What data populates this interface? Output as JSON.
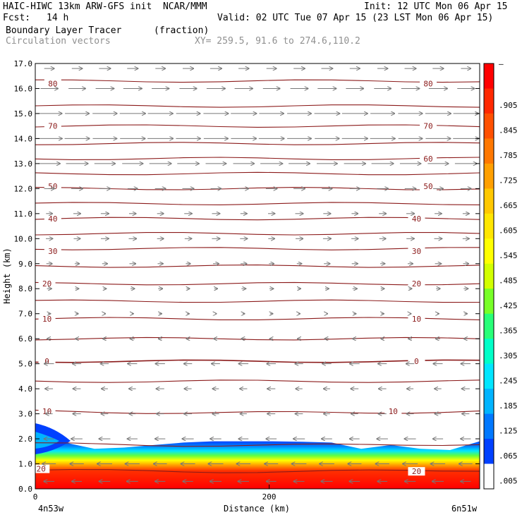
{
  "header": {
    "model": "HAIC-HIWC 13km ARW-GFS init  NCAR/MMM",
    "init": "Init: 12 UTC Mon 06 Apr 15",
    "fcst_label": "Fcst:",
    "fcst_value": "14 h",
    "valid": "Valid: 02 UTC Tue 07 Apr 15 (23 LST Mon 06 Apr 15)",
    "field": "Boundary Layer Tracer",
    "units": "(fraction)",
    "overlay": "Circulation vectors",
    "xy": "XY= 259.5, 91.6 to 274.6,110.2"
  },
  "chart_data": {
    "type": "cross-section",
    "ylabel": "Height (km)",
    "xlabel": "Distance (km)",
    "xlim": [
      0,
      380
    ],
    "ylim": [
      0,
      17
    ],
    "y_ticks": [
      "0.0",
      "1.0",
      "2.0",
      "3.0",
      "4.0",
      "5.0",
      "6.0",
      "7.0",
      "8.0",
      "9.0",
      "10.0",
      "11.0",
      "12.0",
      "13.0",
      "14.0",
      "15.0",
      "16.0",
      "17.0"
    ],
    "x_ticks": [
      {
        "value": 0,
        "label": "0"
      },
      {
        "value": 200,
        "label": "200"
      }
    ],
    "x_endpoints": {
      "left": "4n53w",
      "right": "6n51w"
    },
    "colorbar": {
      "labels": [
        "–",
        ".905",
        ".845",
        ".785",
        ".725",
        ".665",
        ".605",
        ".545",
        ".485",
        ".425",
        ".365",
        ".305",
        ".245",
        ".185",
        ".125",
        ".065",
        ".005"
      ],
      "colors": [
        "#ff0000",
        "#ff2800",
        "#ff5000",
        "#ff7800",
        "#ffa000",
        "#ffc800",
        "#ffe600",
        "#ffff00",
        "#d2ff00",
        "#78ff28",
        "#28ff78",
        "#00ffc8",
        "#00e6ff",
        "#00b4ff",
        "#0078ff",
        "#0040ff",
        "#ffffff"
      ]
    },
    "tracer_top_km": [
      1.8,
      1.85,
      1.6,
      1.65,
      1.75,
      1.85,
      1.9,
      1.9,
      1.9,
      1.88,
      1.85,
      1.6,
      1.75,
      1.6,
      1.55,
      1.9
    ],
    "isotherm_labels": [
      {
        "label": "80",
        "x": 15,
        "y": 16.2
      },
      {
        "label": "80",
        "x": 336,
        "y": 16.2
      },
      {
        "label": "70",
        "x": 15,
        "y": 14.5
      },
      {
        "label": "70",
        "x": 336,
        "y": 14.5
      },
      {
        "label": "60",
        "x": 336,
        "y": 13.2
      },
      {
        "label": "50",
        "x": 15,
        "y": 12.1
      },
      {
        "label": "50",
        "x": 336,
        "y": 12.1
      },
      {
        "label": "40",
        "x": 15,
        "y": 10.8
      },
      {
        "label": "40",
        "x": 326,
        "y": 10.8
      },
      {
        "label": "30",
        "x": 15,
        "y": 9.5
      },
      {
        "label": "30",
        "x": 326,
        "y": 9.5
      },
      {
        "label": "20",
        "x": 10,
        "y": 8.2
      },
      {
        "label": "20",
        "x": 326,
        "y": 8.2
      },
      {
        "label": "10",
        "x": 10,
        "y": 6.8
      },
      {
        "label": "10",
        "x": 326,
        "y": 6.8
      },
      {
        "label": "0",
        "x": 10,
        "y": 5.1
      },
      {
        "label": "0",
        "x": 326,
        "y": 5.1
      },
      {
        "label": "10",
        "x": 10,
        "y": 3.1
      },
      {
        "label": "10",
        "x": 306,
        "y": 3.1
      },
      {
        "label": "20",
        "x": 5,
        "y": 0.8
      },
      {
        "label": "20",
        "x": 326,
        "y": 0.7
      }
    ],
    "isotherm_levels_km": [
      0.75,
      1.8,
      3.1,
      4.3,
      5.1,
      6.0,
      6.8,
      7.5,
      8.2,
      8.9,
      9.6,
      10.2,
      10.8,
      11.4,
      12.0,
      12.6,
      13.2,
      13.8,
      14.5,
      15.3,
      16.3
    ],
    "wind_profile": [
      {
        "z": 0.3,
        "u": -3
      },
      {
        "z": 1.0,
        "u": -4
      },
      {
        "z": 2.0,
        "u": -3
      },
      {
        "z": 3.0,
        "u": -2
      },
      {
        "z": 4.0,
        "u": -2
      },
      {
        "z": 5.0,
        "u": -2.5
      },
      {
        "z": 6.0,
        "u": -1
      },
      {
        "z": 7.0,
        "u": 0.5
      },
      {
        "z": 8.0,
        "u": 1
      },
      {
        "z": 9.0,
        "u": 1.5
      },
      {
        "z": 10.0,
        "u": 2
      },
      {
        "z": 11.0,
        "u": 2
      },
      {
        "z": 12.0,
        "u": 3
      },
      {
        "z": 13.0,
        "u": 6
      },
      {
        "z": 14.0,
        "u": 7
      },
      {
        "z": 15.0,
        "u": 7
      },
      {
        "z": 16.0,
        "u": 5
      },
      {
        "z": 16.8,
        "u": 3
      }
    ]
  }
}
